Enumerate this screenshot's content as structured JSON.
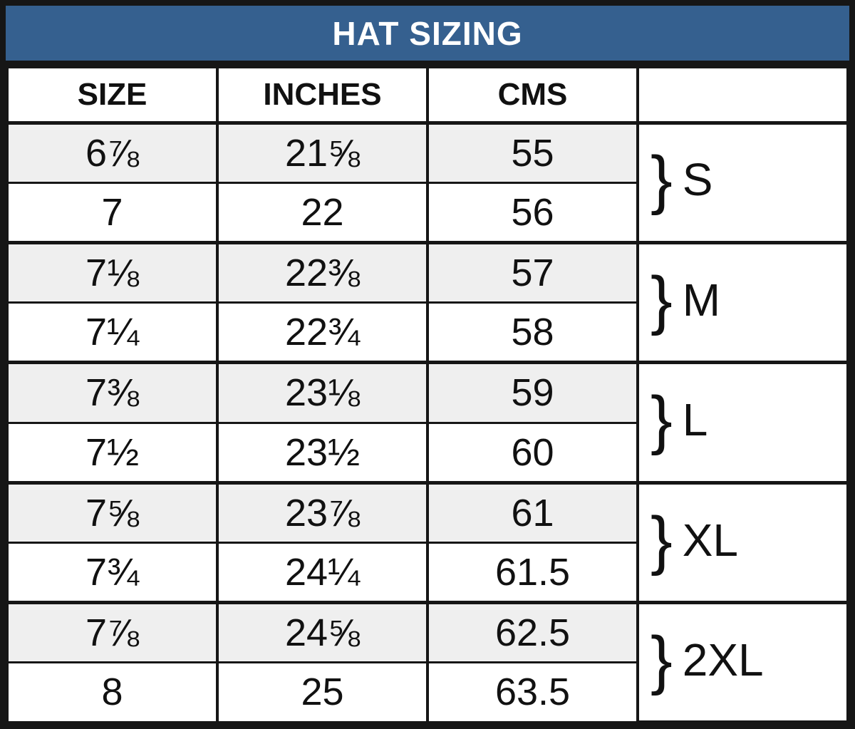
{
  "title": "HAT SIZING",
  "brace_glyph": "}",
  "colors": {
    "title_bg": "#35608F",
    "title_text": "#FFFFFF",
    "row_alt_bg": "#EFEFEF",
    "row_bg": "#FFFFFF",
    "border": "#161616"
  },
  "chart_data": {
    "type": "table",
    "title": "HAT SIZING",
    "columns": [
      "SIZE",
      "INCHES",
      "CMS",
      ""
    ],
    "groups": [
      {
        "label": "S",
        "rows": [
          [
            "6⅞",
            "21⅝",
            "55"
          ],
          [
            "7",
            "22",
            "56"
          ]
        ]
      },
      {
        "label": "M",
        "rows": [
          [
            "7⅛",
            "22⅜",
            "57"
          ],
          [
            "7¼",
            "22¾",
            "58"
          ]
        ]
      },
      {
        "label": "L",
        "rows": [
          [
            "7⅜",
            "23⅛",
            "59"
          ],
          [
            "7½",
            "23½",
            "60"
          ]
        ]
      },
      {
        "label": "XL",
        "rows": [
          [
            "7⅝",
            "23⅞",
            "61"
          ],
          [
            "7¾",
            "24¼",
            "61.5"
          ]
        ]
      },
      {
        "label": "2XL",
        "rows": [
          [
            "7⅞",
            "24⅝",
            "62.5"
          ],
          [
            "8",
            "25",
            "63.5"
          ]
        ]
      }
    ]
  }
}
